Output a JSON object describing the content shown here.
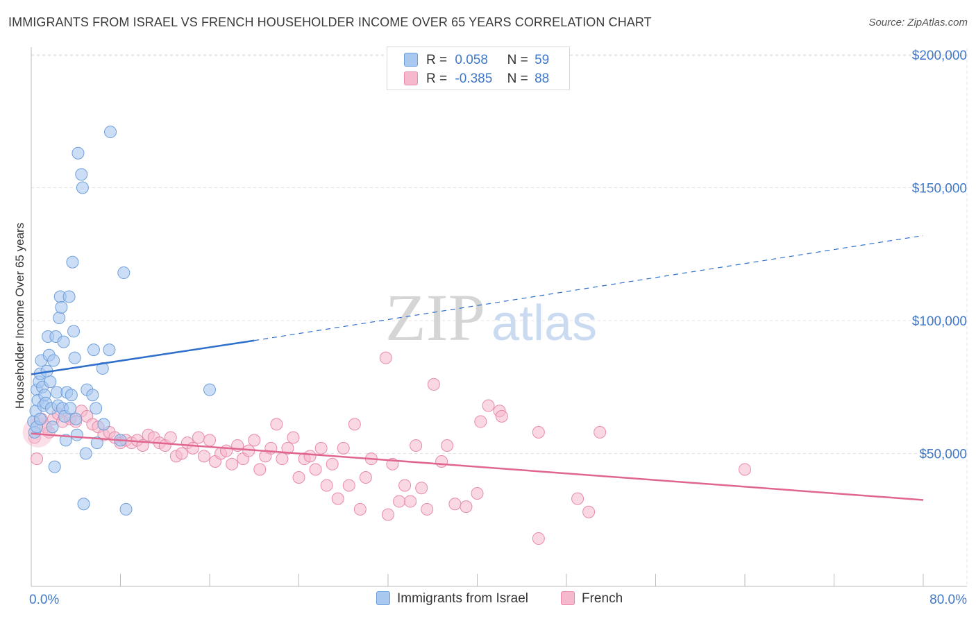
{
  "header": {
    "title": "IMMIGRANTS FROM ISRAEL VS FRENCH HOUSEHOLDER INCOME OVER 65 YEARS CORRELATION CHART",
    "source": "Source: ZipAtlas.com"
  },
  "watermark": {
    "zip": "ZIP",
    "atlas": "atlas"
  },
  "legend": {
    "rows": [
      {
        "r_label": "R =",
        "r_value": "0.058",
        "n_label": "N =",
        "n_value": "59"
      },
      {
        "r_label": "R =",
        "r_value": "-0.385",
        "n_label": "N =",
        "n_value": "88"
      }
    ]
  },
  "bottom_legend": {
    "israel": "Immigrants from Israel",
    "french": "French"
  },
  "colors": {
    "israel_fill": "#a9c8f0",
    "israel_stroke": "#6f9fdb",
    "israel_line": "#2f6fcc",
    "french_fill": "#f6b8cc",
    "french_stroke": "#e88aa8",
    "french_line": "#e0668f",
    "tick_text": "#3f78c9",
    "grid": "#e3e3e3"
  },
  "chart_data": {
    "type": "scatter",
    "title": "IMMIGRANTS FROM ISRAEL VS FRENCH HOUSEHOLDER INCOME OVER 65 YEARS CORRELATION CHART",
    "xlabel": "",
    "ylabel": "Householder Income Over 65 years",
    "xlim": [
      0,
      80
    ],
    "ylim": [
      0,
      210000
    ],
    "x_tick_labels": [
      "0.0%",
      "80.0%"
    ],
    "y_ticks": [
      50000,
      100000,
      150000,
      200000
    ],
    "y_tick_labels": [
      "$50,000",
      "$100,000",
      "$150,000",
      "$200,000"
    ],
    "grid": true,
    "series": [
      {
        "name": "Immigrants from Israel",
        "r": 0.058,
        "n": 59,
        "trend": {
          "x0": 0,
          "y0": 79800,
          "x1": 20,
          "y1": 92500,
          "x_dash_end": 80,
          "y_dash_end": 132000
        },
        "points": [
          [
            0.2,
            62000
          ],
          [
            0.3,
            58000
          ],
          [
            0.4,
            66000
          ],
          [
            0.5,
            74000
          ],
          [
            0.5,
            60000
          ],
          [
            0.6,
            70000
          ],
          [
            0.7,
            77000
          ],
          [
            0.8,
            80000
          ],
          [
            0.8,
            63000
          ],
          [
            0.9,
            85000
          ],
          [
            1.0,
            75000
          ],
          [
            1.1,
            68000
          ],
          [
            1.2,
            72000
          ],
          [
            1.3,
            69000
          ],
          [
            1.4,
            81000
          ],
          [
            1.5,
            94000
          ],
          [
            1.6,
            87000
          ],
          [
            1.7,
            77000
          ],
          [
            1.8,
            67000
          ],
          [
            1.9,
            60000
          ],
          [
            2.0,
            85000
          ],
          [
            2.1,
            45000
          ],
          [
            2.2,
            94000
          ],
          [
            2.3,
            73000
          ],
          [
            2.4,
            68000
          ],
          [
            2.5,
            101000
          ],
          [
            2.6,
            109000
          ],
          [
            2.7,
            105000
          ],
          [
            2.8,
            67000
          ],
          [
            2.9,
            92000
          ],
          [
            3.0,
            64000
          ],
          [
            3.1,
            55000
          ],
          [
            3.2,
            73000
          ],
          [
            3.4,
            109000
          ],
          [
            3.5,
            67000
          ],
          [
            3.6,
            72000
          ],
          [
            3.7,
            122000
          ],
          [
            3.8,
            96000
          ],
          [
            3.9,
            86000
          ],
          [
            4.0,
            63000
          ],
          [
            4.1,
            57000
          ],
          [
            4.2,
            163000
          ],
          [
            4.5,
            155000
          ],
          [
            4.6,
            150000
          ],
          [
            4.7,
            31000
          ],
          [
            4.9,
            50000
          ],
          [
            5.0,
            74000
          ],
          [
            5.5,
            72000
          ],
          [
            5.6,
            89000
          ],
          [
            5.9,
            54000
          ],
          [
            6.4,
            82000
          ],
          [
            6.5,
            61000
          ],
          [
            7.0,
            89000
          ],
          [
            7.1,
            171000
          ],
          [
            8.3,
            118000
          ],
          [
            8.5,
            29000
          ],
          [
            16.0,
            74000
          ],
          [
            8.0,
            55000
          ],
          [
            5.8,
            67000
          ]
        ]
      },
      {
        "name": "French",
        "r": -0.385,
        "n": 88,
        "trend": {
          "x0": 0,
          "y0": 57500,
          "x1": 80,
          "y1": 32500
        },
        "points": [
          [
            0.3,
            56000
          ],
          [
            0.5,
            48000
          ],
          [
            0.9,
            63000
          ],
          [
            1.3,
            60000
          ],
          [
            1.6,
            58000
          ],
          [
            2.0,
            63000
          ],
          [
            2.4,
            65000
          ],
          [
            2.8,
            62000
          ],
          [
            3.5,
            63000
          ],
          [
            4.0,
            62000
          ],
          [
            4.5,
            66000
          ],
          [
            5.0,
            64000
          ],
          [
            5.5,
            61000
          ],
          [
            6.0,
            60000
          ],
          [
            6.5,
            57000
          ],
          [
            7.0,
            58000
          ],
          [
            7.5,
            56000
          ],
          [
            8.0,
            54000
          ],
          [
            8.5,
            55000
          ],
          [
            9.0,
            54000
          ],
          [
            9.5,
            55000
          ],
          [
            10.0,
            53000
          ],
          [
            10.5,
            57000
          ],
          [
            11.0,
            56000
          ],
          [
            11.5,
            54000
          ],
          [
            12.0,
            53000
          ],
          [
            12.5,
            56000
          ],
          [
            13.0,
            49000
          ],
          [
            13.5,
            50000
          ],
          [
            14.0,
            54000
          ],
          [
            14.5,
            52000
          ],
          [
            15.0,
            56000
          ],
          [
            15.5,
            49000
          ],
          [
            16.0,
            55000
          ],
          [
            16.5,
            47000
          ],
          [
            17.0,
            50000
          ],
          [
            17.5,
            51000
          ],
          [
            18.0,
            46000
          ],
          [
            18.5,
            53000
          ],
          [
            19.0,
            48000
          ],
          [
            19.5,
            51000
          ],
          [
            20.0,
            55000
          ],
          [
            20.5,
            44000
          ],
          [
            21.0,
            49000
          ],
          [
            21.5,
            52000
          ],
          [
            22.0,
            61000
          ],
          [
            22.5,
            48000
          ],
          [
            23.0,
            52000
          ],
          [
            23.5,
            56000
          ],
          [
            24.0,
            41000
          ],
          [
            24.5,
            48000
          ],
          [
            25.0,
            49000
          ],
          [
            25.5,
            44000
          ],
          [
            26.0,
            52000
          ],
          [
            26.5,
            38000
          ],
          [
            27.0,
            46000
          ],
          [
            27.5,
            33000
          ],
          [
            28.0,
            52000
          ],
          [
            28.5,
            38000
          ],
          [
            29.0,
            61000
          ],
          [
            29.5,
            29000
          ],
          [
            30.0,
            41000
          ],
          [
            30.5,
            48000
          ],
          [
            31.8,
            86000
          ],
          [
            32.0,
            27000
          ],
          [
            32.4,
            46000
          ],
          [
            33.0,
            32000
          ],
          [
            33.5,
            38000
          ],
          [
            34.0,
            32000
          ],
          [
            34.5,
            53000
          ],
          [
            35.0,
            37000
          ],
          [
            35.5,
            29000
          ],
          [
            36.1,
            76000
          ],
          [
            36.8,
            47000
          ],
          [
            37.3,
            53000
          ],
          [
            38.0,
            31000
          ],
          [
            39.0,
            30000
          ],
          [
            40.0,
            35000
          ],
          [
            40.3,
            62000
          ],
          [
            41.0,
            68000
          ],
          [
            42.0,
            66000
          ],
          [
            42.2,
            64000
          ],
          [
            45.5,
            18000
          ],
          [
            45.5,
            58000
          ],
          [
            49.0,
            33000
          ],
          [
            50.0,
            28000
          ],
          [
            51.0,
            58000
          ],
          [
            64.0,
            44000
          ]
        ]
      }
    ]
  }
}
